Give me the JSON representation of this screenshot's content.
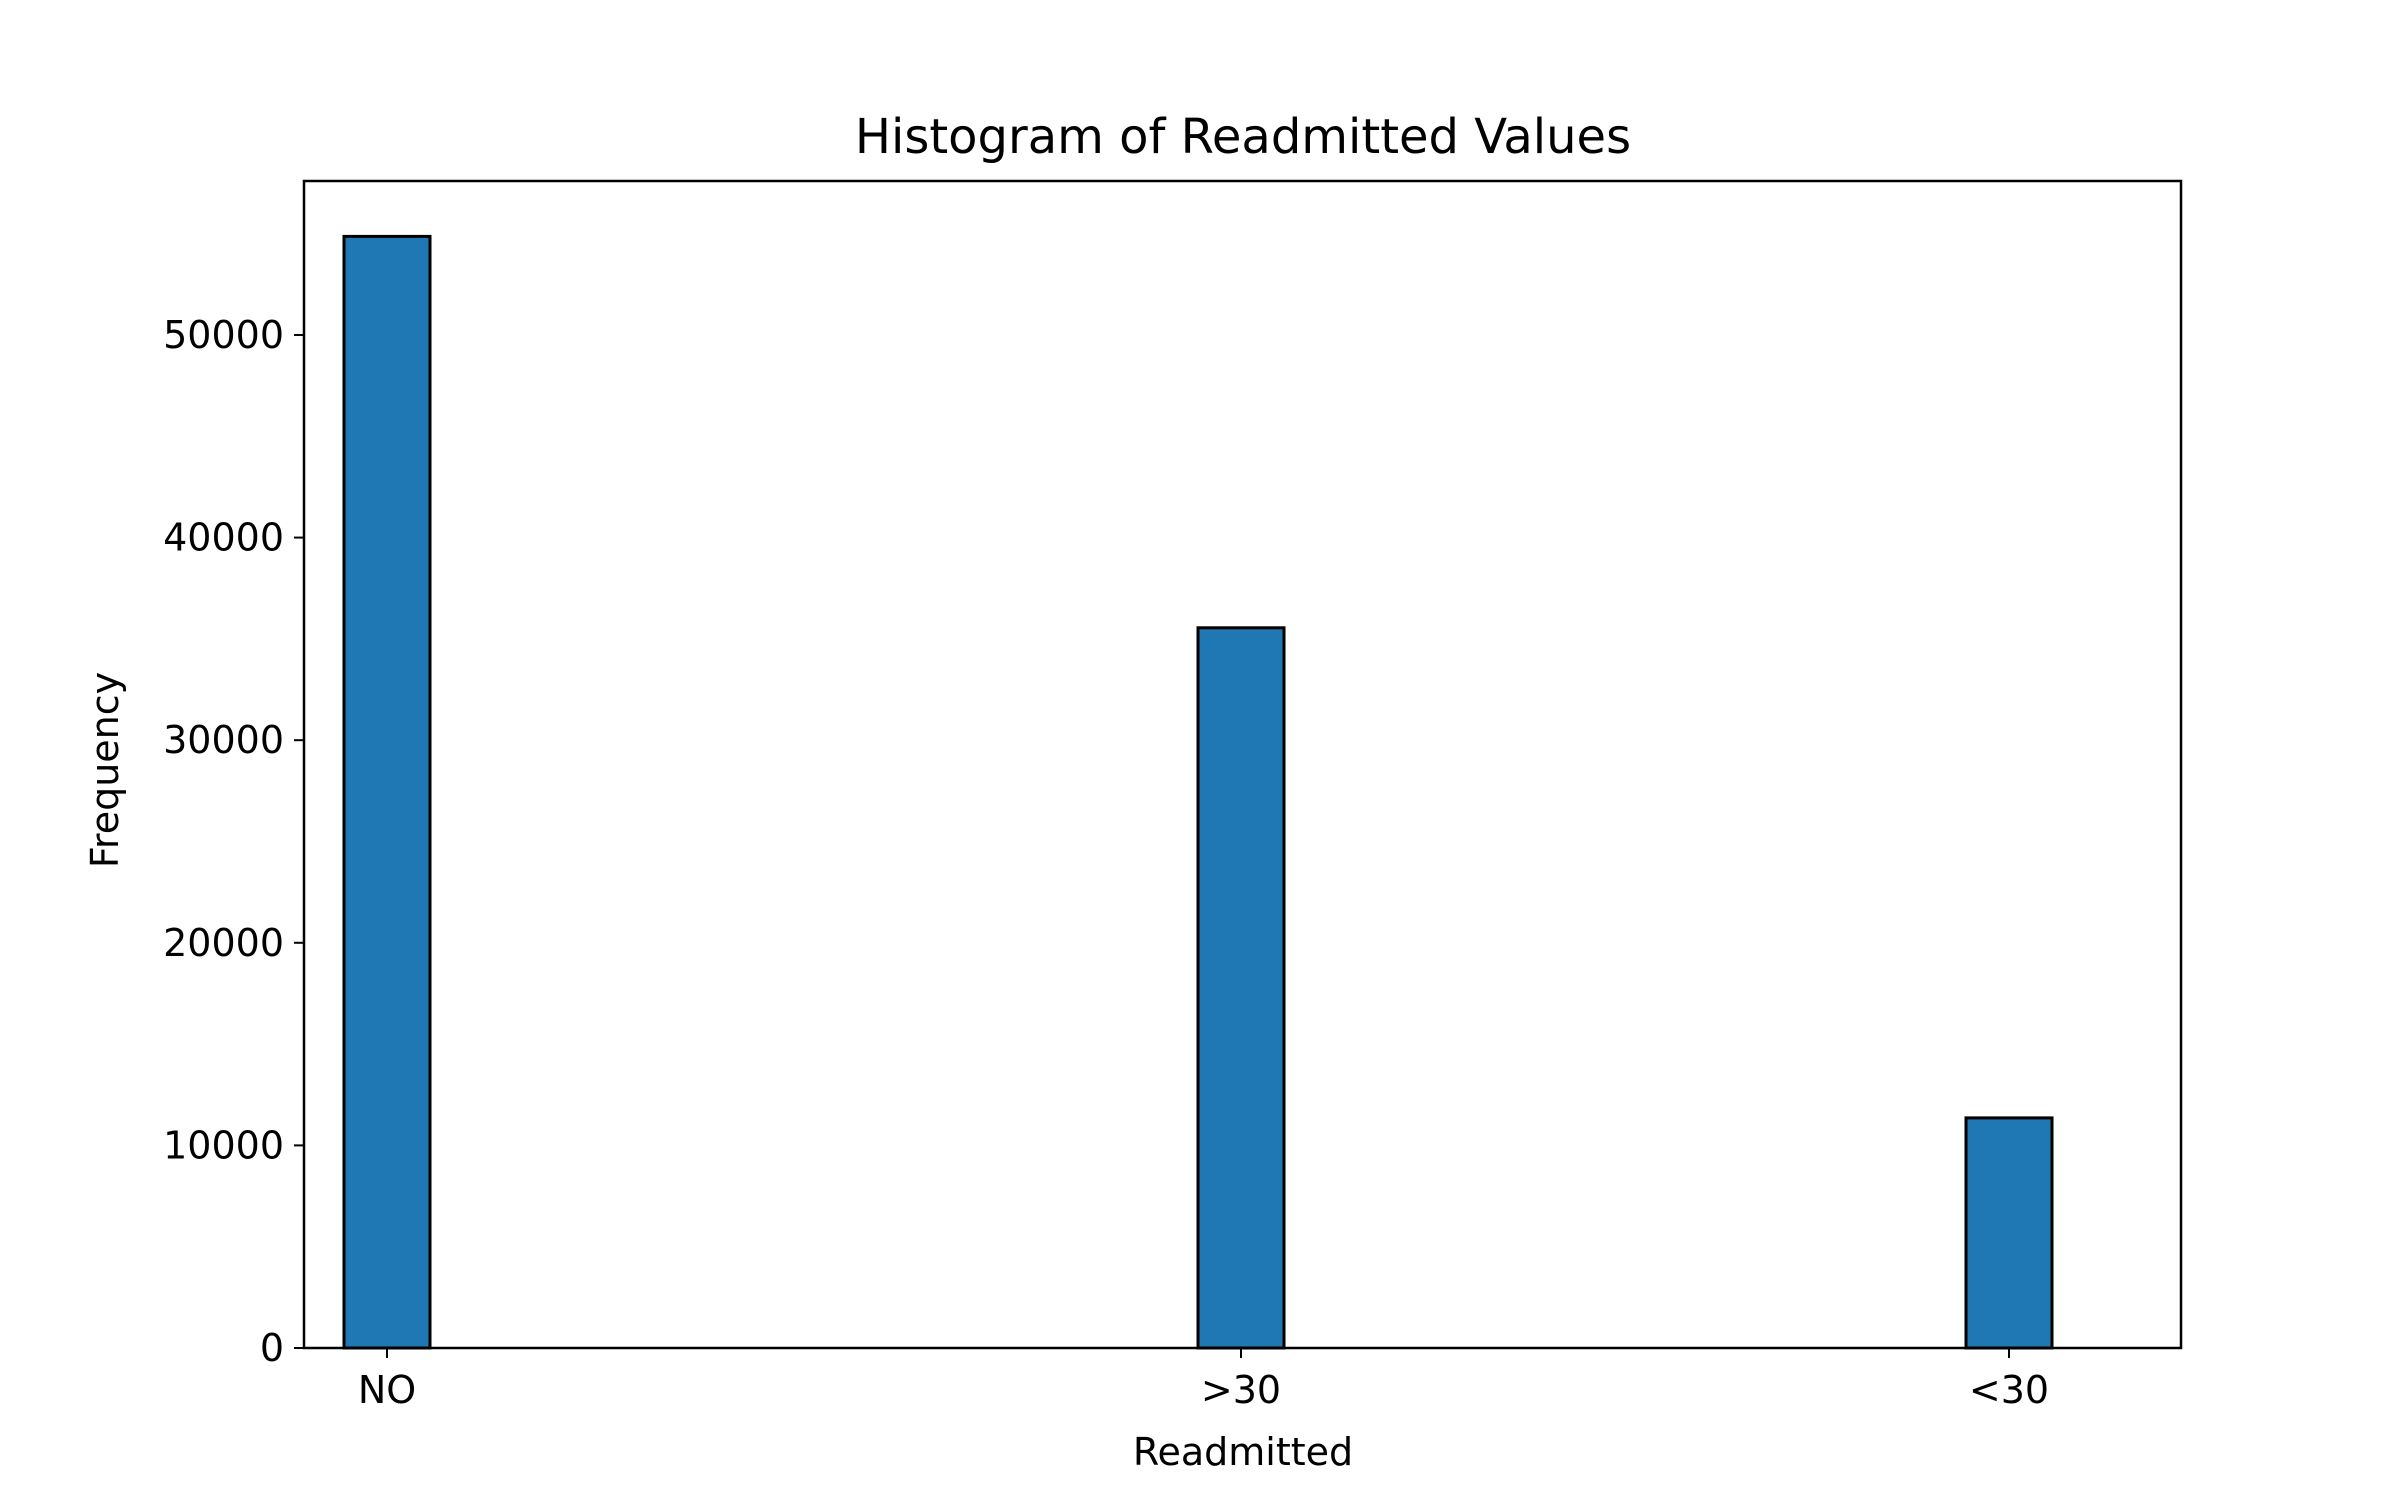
{
  "chart_data": {
    "type": "bar",
    "title": "Histogram of Readmitted Values",
    "xlabel": "Readmitted",
    "ylabel": "Frequency",
    "categories": [
      "NO",
      ">30",
      "<30"
    ],
    "values": [
      54864,
      35545,
      11357
    ],
    "ylim": [
      0,
      57600
    ],
    "yticks": [
      0,
      10000,
      20000,
      30000,
      40000,
      50000
    ],
    "ytick_labels": [
      "0",
      "10000",
      "20000",
      "30000",
      "40000",
      "50000"
    ],
    "grid": false,
    "legend": "none",
    "colors": {
      "bar_fill": "#1f77b4",
      "bar_edge": "#000000",
      "axes": "#000000",
      "background": "#ffffff"
    }
  }
}
